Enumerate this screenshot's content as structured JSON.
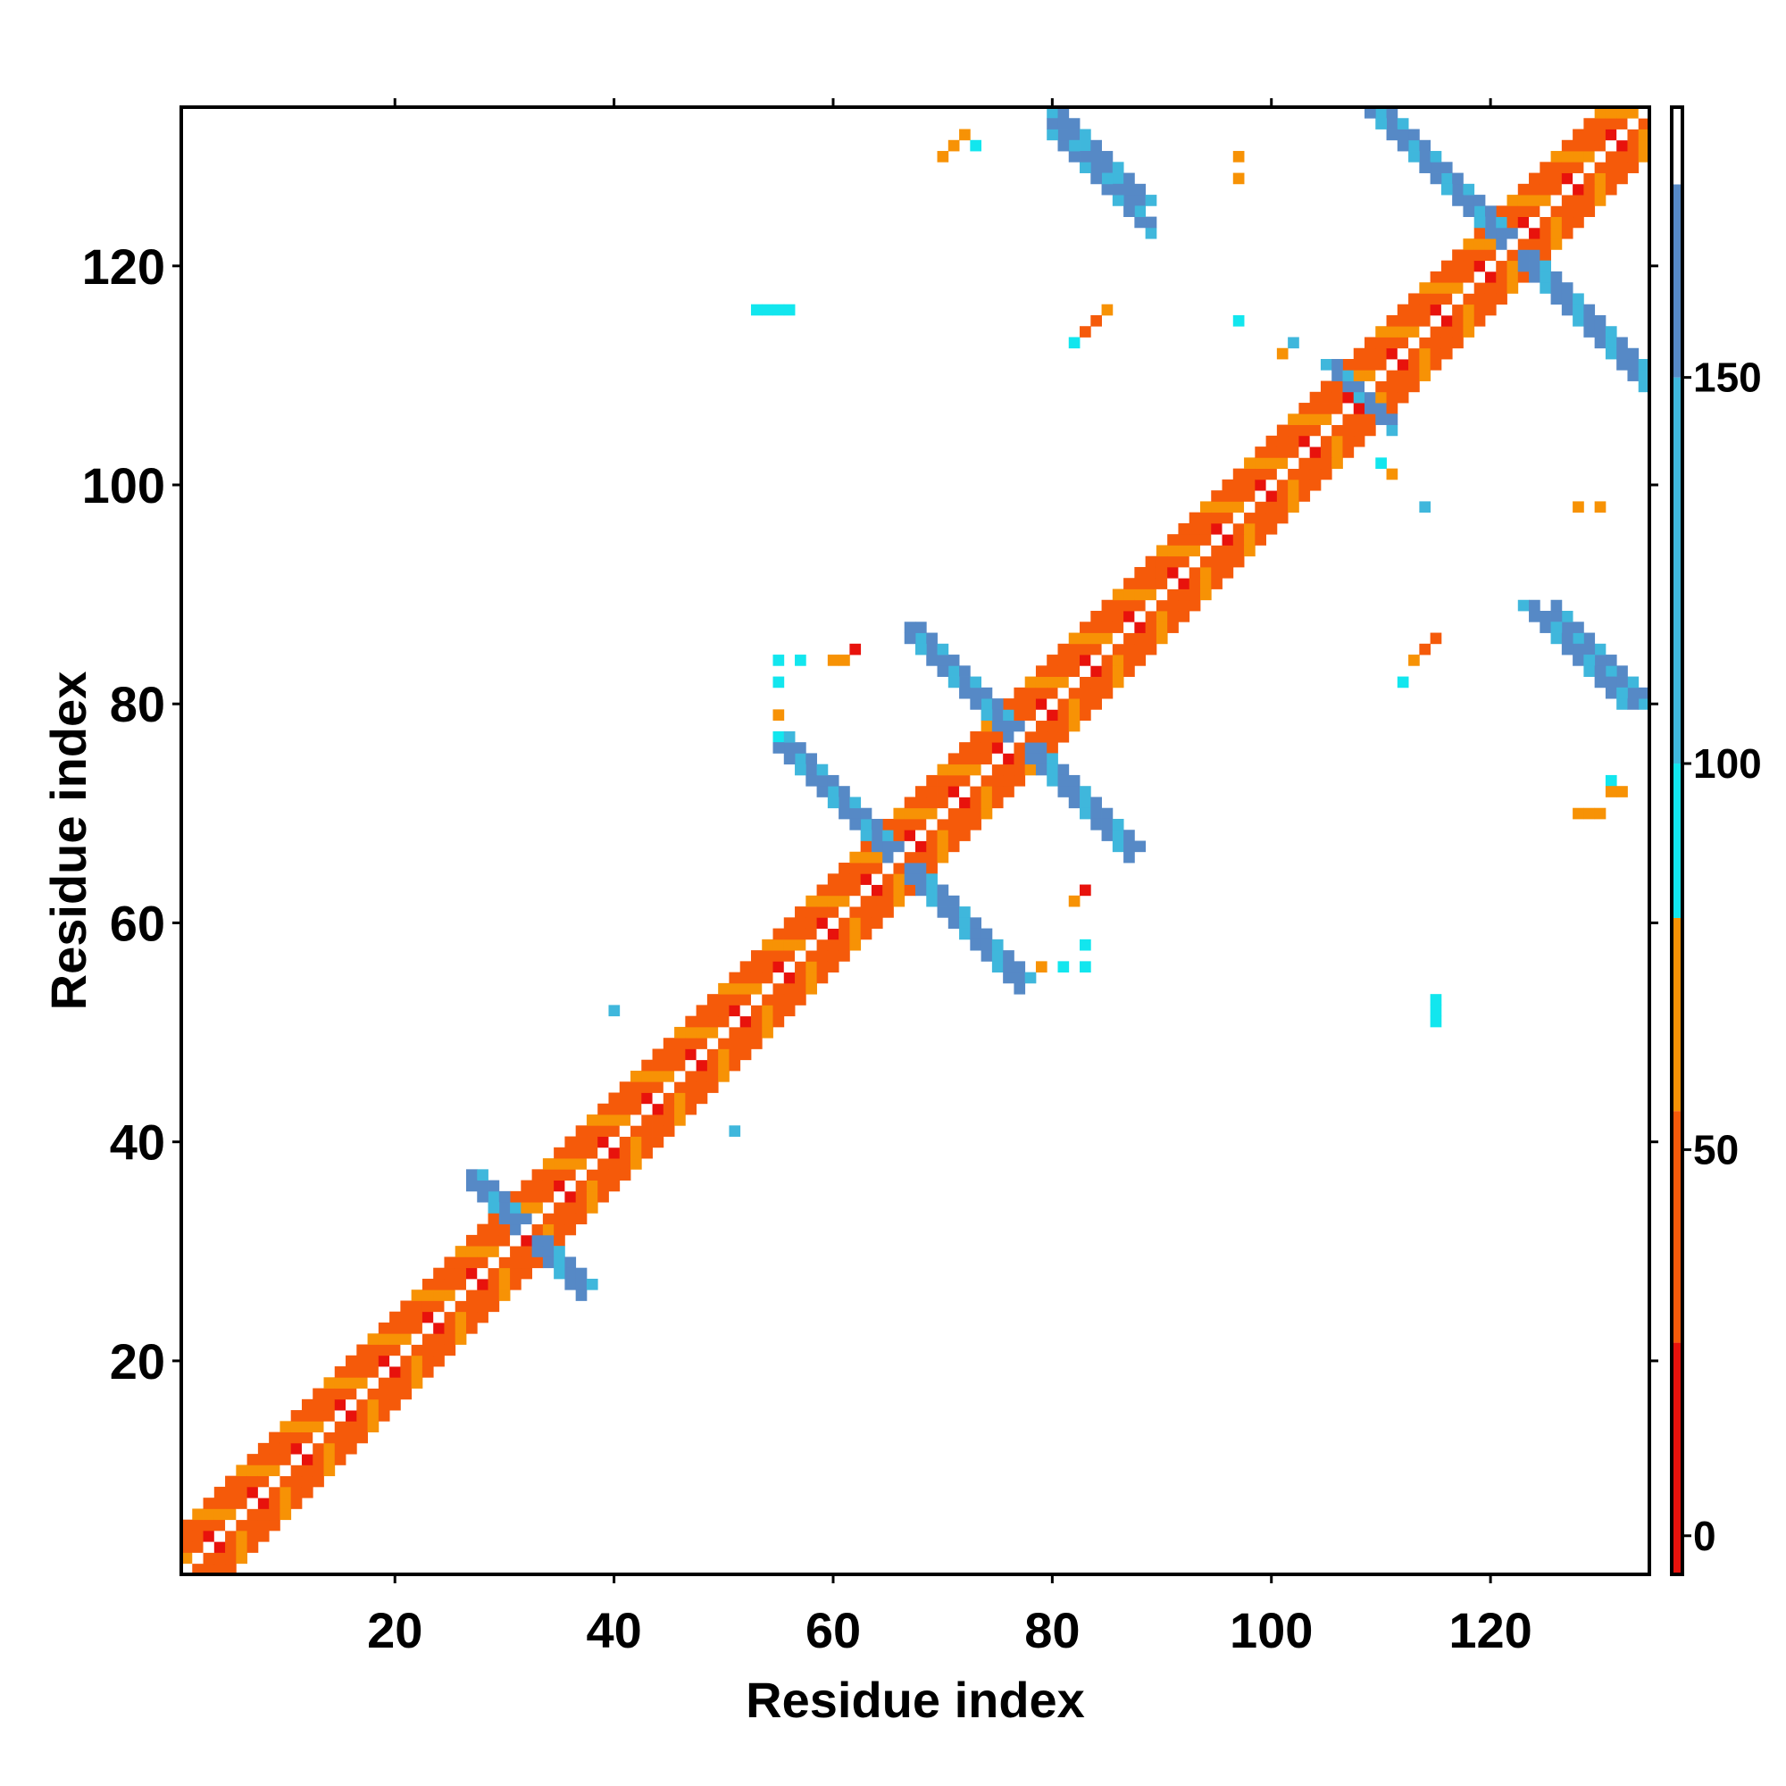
{
  "chart_data": {
    "type": "heatmap",
    "title": "",
    "xlabel": "Residue index",
    "ylabel": "Residue index",
    "xlim": [
      1,
      134
    ],
    "ylim": [
      1,
      134
    ],
    "x_ticks": [
      "20",
      "40",
      "60",
      "80",
      "100",
      "120"
    ],
    "y_ticks": [
      "20",
      "40",
      "60",
      "80",
      "100",
      "120"
    ],
    "x_tick_values": [
      20,
      40,
      60,
      80,
      100,
      120
    ],
    "y_tick_values": [
      20,
      40,
      60,
      80,
      100,
      120
    ],
    "colorbar": {
      "range": [
        -5,
        185
      ],
      "tick_values": [
        0,
        50,
        100,
        150
      ],
      "ticks": [
        "0",
        "50",
        "100",
        "150"
      ],
      "stops": [
        {
          "from": -5,
          "to": 25,
          "color": "#e8120c"
        },
        {
          "from": 25,
          "to": 55,
          "color": "#f55a0a"
        },
        {
          "from": 55,
          "to": 80,
          "color": "#f79205"
        },
        {
          "from": 80,
          "to": 100,
          "color": "#12e6ee"
        },
        {
          "from": 100,
          "to": 150,
          "color": "#3fb7dc"
        },
        {
          "from": 150,
          "to": 175,
          "color": "#5689c6"
        },
        {
          "from": 175,
          "to": 185,
          "color": "#ffffff"
        }
      ]
    },
    "grid": false,
    "structure": {
      "diagonal": {
        "from": 1,
        "to": 134
      },
      "crosses": [
        {
          "center": 32,
          "arm": 5,
          "values": [
            100,
            150,
            170
          ]
        },
        {
          "center": 66,
          "arm": 11,
          "values": [
            100,
            150,
            170
          ]
        },
        {
          "center": 77,
          "arm": 10,
          "values": [
            100,
            150,
            170
          ]
        },
        {
          "center": 122,
          "arm": 13,
          "values": [
            100,
            150,
            170
          ]
        }
      ],
      "antidiagonal_strands": [
        {
          "i_from": 80,
          "j_from": 134,
          "length": 9,
          "values": [
            100,
            150,
            170
          ]
        },
        {
          "i_from": 123,
          "j_from": 89,
          "length": 10,
          "values": [
            100,
            150,
            170
          ]
        },
        {
          "i_from": 105,
          "j_from": 111,
          "length": 5,
          "values": [
            100,
            150,
            170
          ]
        }
      ],
      "isolated": [
        {
          "x": 70,
          "y": 130,
          "v": 60
        },
        {
          "x": 71,
          "y": 131,
          "v": 60
        },
        {
          "x": 72,
          "y": 132,
          "v": 70
        },
        {
          "x": 73,
          "y": 131,
          "v": 90
        },
        {
          "x": 97,
          "y": 130,
          "v": 60
        },
        {
          "x": 97,
          "y": 128,
          "v": 60
        },
        {
          "x": 53,
          "y": 116,
          "v": 90
        },
        {
          "x": 54,
          "y": 116,
          "v": 90
        },
        {
          "x": 55,
          "y": 116,
          "v": 90
        },
        {
          "x": 56,
          "y": 116,
          "v": 90
        },
        {
          "x": 82,
          "y": 113,
          "v": 90
        },
        {
          "x": 83,
          "y": 114,
          "v": 50
        },
        {
          "x": 84,
          "y": 115,
          "v": 50
        },
        {
          "x": 85,
          "y": 116,
          "v": 60
        },
        {
          "x": 97,
          "y": 115,
          "v": 90
        },
        {
          "x": 101,
          "y": 112,
          "v": 60
        },
        {
          "x": 102,
          "y": 113,
          "v": 120
        },
        {
          "x": 110,
          "y": 102,
          "v": 90
        },
        {
          "x": 111,
          "y": 101,
          "v": 60
        },
        {
          "x": 114,
          "y": 98,
          "v": 120
        },
        {
          "x": 128,
          "y": 98,
          "v": 70
        },
        {
          "x": 130,
          "y": 98,
          "v": 70
        },
        {
          "x": 112,
          "y": 82,
          "v": 90
        },
        {
          "x": 113,
          "y": 84,
          "v": 60
        },
        {
          "x": 114,
          "y": 85,
          "v": 50
        },
        {
          "x": 115,
          "y": 86,
          "v": 30
        },
        {
          "x": 55,
          "y": 84,
          "v": 90
        },
        {
          "x": 57,
          "y": 84,
          "v": 90
        },
        {
          "x": 55,
          "y": 82,
          "v": 90
        },
        {
          "x": 60,
          "y": 84,
          "v": 70
        },
        {
          "x": 61,
          "y": 84,
          "v": 70
        },
        {
          "x": 62,
          "y": 85,
          "v": 20
        },
        {
          "x": 55,
          "y": 79,
          "v": 60
        },
        {
          "x": 55,
          "y": 77,
          "v": 90
        },
        {
          "x": 82,
          "y": 62,
          "v": 70
        },
        {
          "x": 83,
          "y": 63,
          "v": 20
        },
        {
          "x": 83,
          "y": 58,
          "v": 90
        },
        {
          "x": 79,
          "y": 56,
          "v": 60
        },
        {
          "x": 81,
          "y": 56,
          "v": 90
        },
        {
          "x": 83,
          "y": 56,
          "v": 90
        },
        {
          "x": 115,
          "y": 53,
          "v": 90
        },
        {
          "x": 115,
          "y": 52,
          "v": 90
        },
        {
          "x": 115,
          "y": 51,
          "v": 90
        },
        {
          "x": 40,
          "y": 52,
          "v": 120
        },
        {
          "x": 51,
          "y": 41,
          "v": 120
        },
        {
          "x": 131,
          "y": 73,
          "v": 90
        },
        {
          "x": 131,
          "y": 72,
          "v": 70
        },
        {
          "x": 132,
          "y": 72,
          "v": 70
        },
        {
          "x": 128,
          "y": 70,
          "v": 60
        },
        {
          "x": 129,
          "y": 70,
          "v": 60
        },
        {
          "x": 130,
          "y": 70,
          "v": 60
        }
      ]
    }
  }
}
